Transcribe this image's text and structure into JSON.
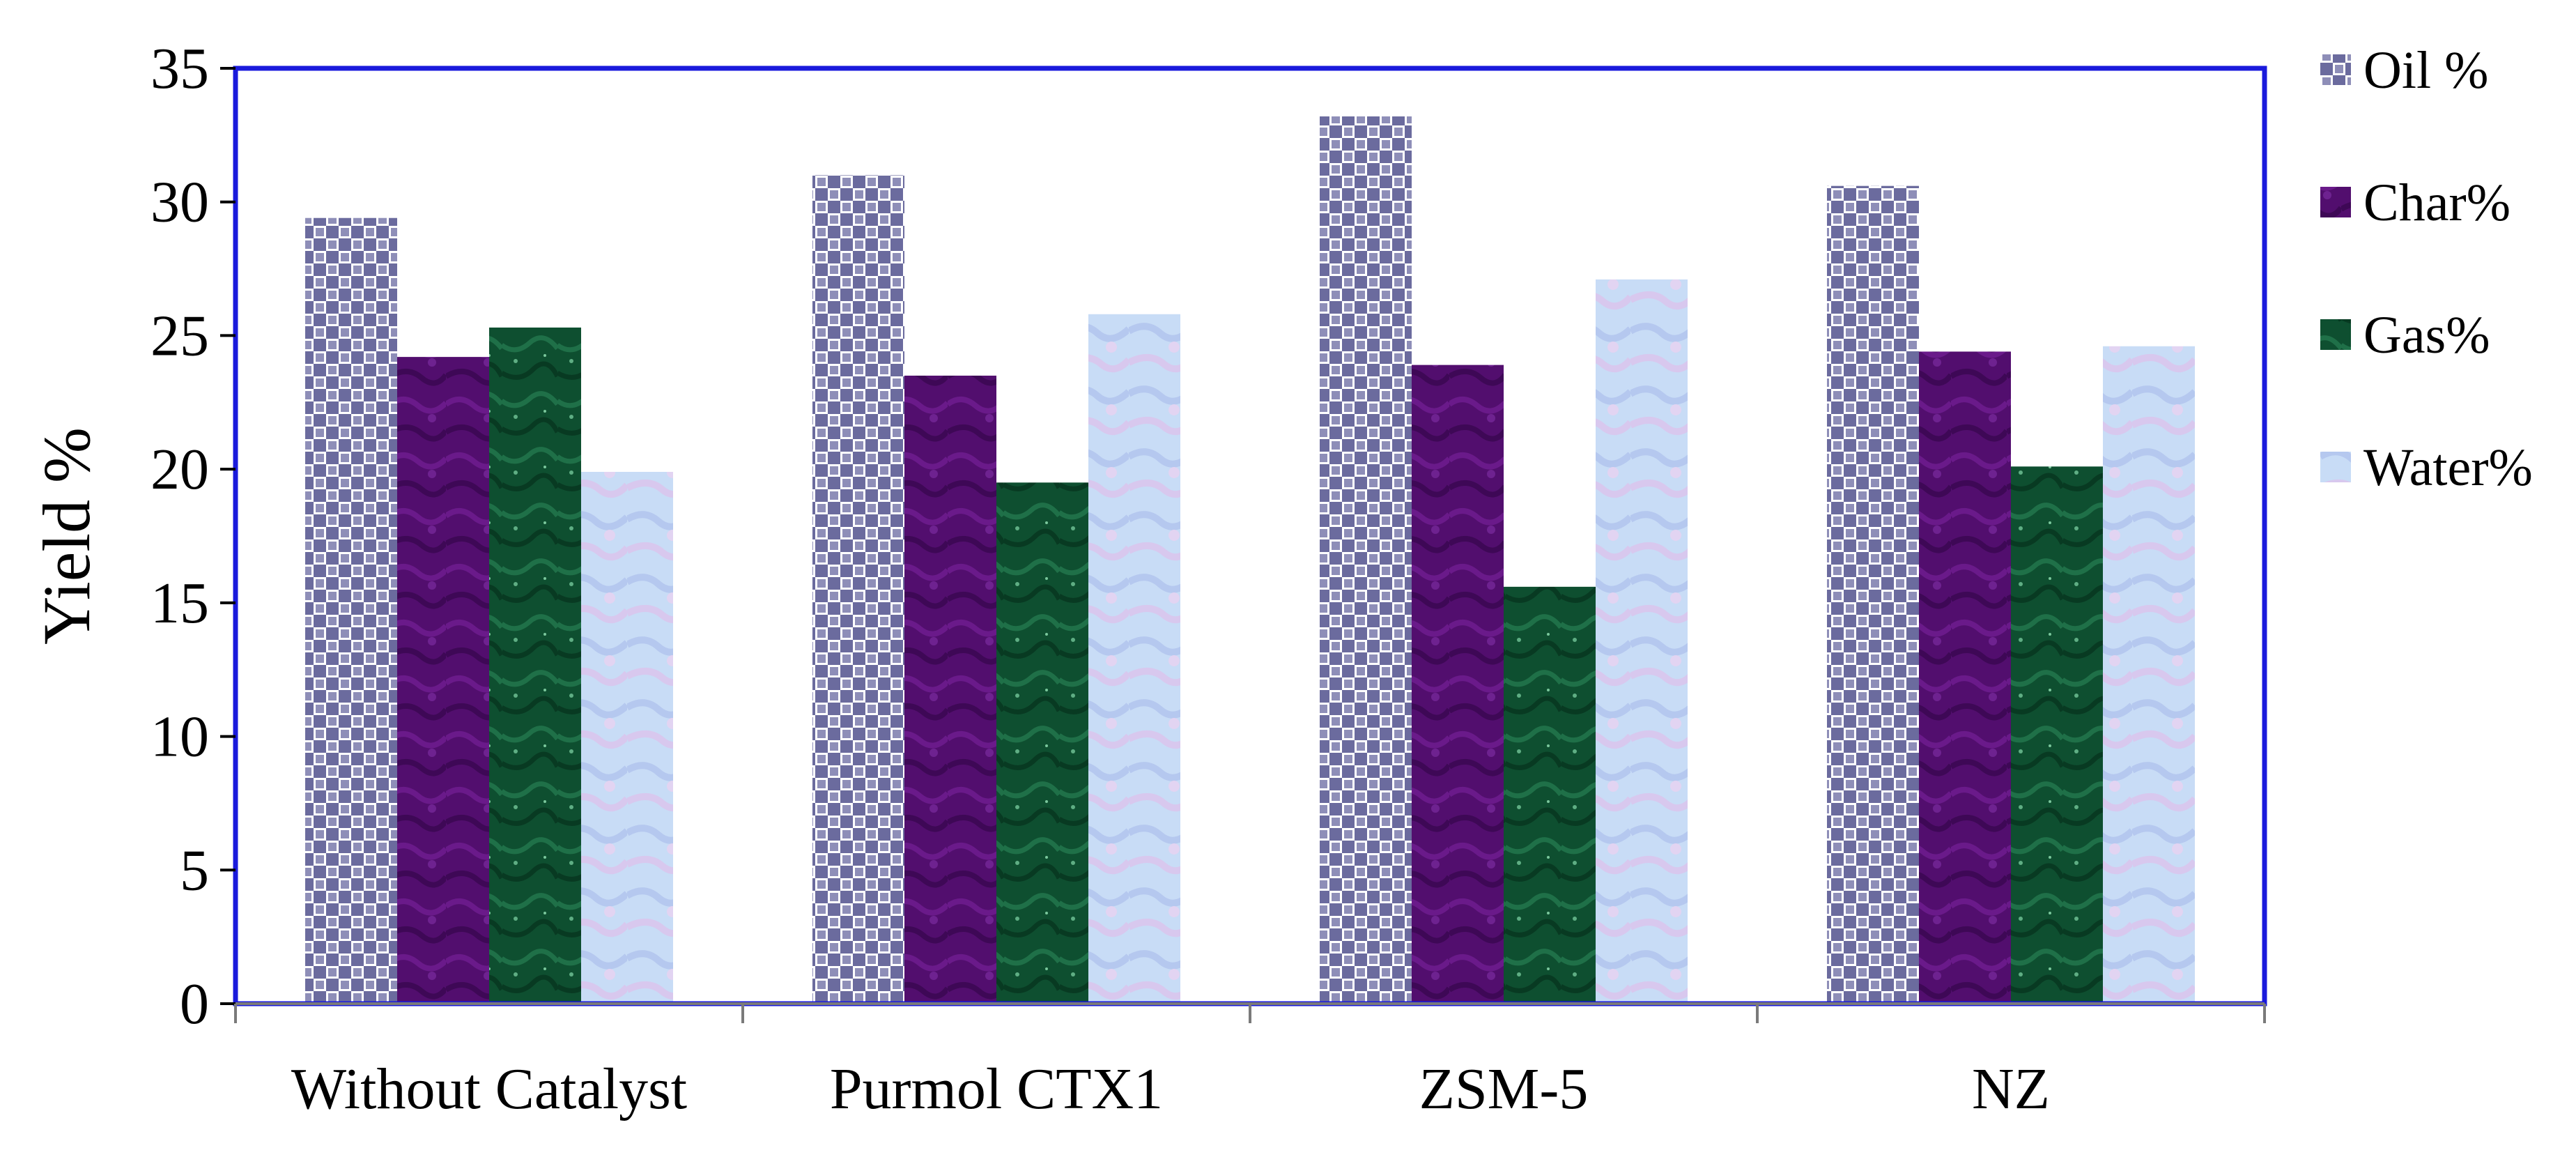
{
  "chart_data": {
    "type": "bar",
    "title": "",
    "xlabel": "",
    "ylabel": "Yield %",
    "ylim": [
      0,
      35
    ],
    "yticks": [
      0,
      5,
      10,
      15,
      20,
      25,
      30,
      35
    ],
    "grid": false,
    "legend_position": "right",
    "categories": [
      "Without Catalyst",
      "Purmol CTX1",
      "ZSM-5",
      "NZ"
    ],
    "series": [
      {
        "name": "Oil %",
        "values": [
          29.4,
          31.0,
          33.2,
          30.6
        ],
        "color": "#6b6b9e",
        "pattern": "checker"
      },
      {
        "name": "Char%",
        "values": [
          24.2,
          23.5,
          23.9,
          24.4
        ],
        "color": "#520e6e",
        "pattern": "texture"
      },
      {
        "name": "Gas%",
        "values": [
          25.3,
          19.5,
          15.6,
          20.1
        ],
        "color": "#0e4f30",
        "pattern": "texture"
      },
      {
        "name": "Water%",
        "values": [
          19.9,
          25.8,
          27.1,
          24.6
        ],
        "color": "#c8dcf6",
        "pattern": "texture"
      }
    ],
    "plot_border_color": "#1a1adc"
  }
}
